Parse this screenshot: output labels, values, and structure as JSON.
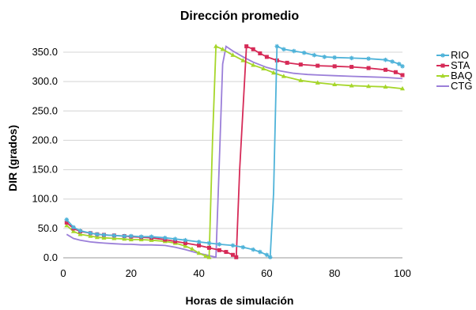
{
  "chart_data": {
    "type": "line",
    "title": "Dirección promedio",
    "xlabel": "Horas de simulación",
    "ylabel": "DIR (grados)",
    "xlim": [
      0,
      100
    ],
    "ylim": [
      0,
      350
    ],
    "xticks": [
      "0",
      "20",
      "40",
      "60",
      "80",
      "100"
    ],
    "yticks": [
      "0.0",
      "50.0",
      "100.0",
      "150.0",
      "200.0",
      "250.0",
      "300.0",
      "350.0"
    ],
    "grid": true,
    "legend_position": "right",
    "series": [
      {
        "name": "RIO",
        "color": "#4fb3d9",
        "marker": "star",
        "points": [
          [
            1,
            65
          ],
          [
            3,
            52
          ],
          [
            5,
            46
          ],
          [
            8,
            42
          ],
          [
            10,
            40
          ],
          [
            12,
            39
          ],
          [
            15,
            38
          ],
          [
            18,
            37
          ],
          [
            20,
            37
          ],
          [
            23,
            36
          ],
          [
            26,
            36
          ],
          [
            30,
            34
          ],
          [
            33,
            32
          ],
          [
            36,
            30
          ],
          [
            40,
            27
          ],
          [
            43,
            25
          ],
          [
            46,
            23
          ],
          [
            50,
            21
          ],
          [
            53,
            18
          ],
          [
            56,
            14
          ],
          [
            58,
            10
          ],
          [
            60,
            5
          ],
          [
            61,
            1
          ],
          [
            62,
            110
          ],
          [
            63,
            360
          ],
          [
            65,
            355
          ],
          [
            68,
            352
          ],
          [
            71,
            349
          ],
          [
            74,
            345
          ],
          [
            77,
            342
          ],
          [
            80,
            341
          ],
          [
            85,
            340
          ],
          [
            90,
            339
          ],
          [
            95,
            337
          ],
          [
            97,
            334
          ],
          [
            99,
            330
          ],
          [
            100,
            326
          ]
        ]
      },
      {
        "name": "STA",
        "color": "#d62a57",
        "marker": "square",
        "points": [
          [
            1,
            60
          ],
          [
            3,
            50
          ],
          [
            5,
            45
          ],
          [
            8,
            42
          ],
          [
            10,
            40
          ],
          [
            12,
            39
          ],
          [
            15,
            38
          ],
          [
            18,
            37
          ],
          [
            20,
            36
          ],
          [
            23,
            35
          ],
          [
            26,
            34
          ],
          [
            30,
            31
          ],
          [
            33,
            28
          ],
          [
            36,
            25
          ],
          [
            40,
            21
          ],
          [
            43,
            17
          ],
          [
            46,
            13
          ],
          [
            48,
            10
          ],
          [
            50,
            5
          ],
          [
            51,
            1
          ],
          [
            52,
            150
          ],
          [
            54,
            360
          ],
          [
            56,
            355
          ],
          [
            58,
            348
          ],
          [
            60,
            342
          ],
          [
            63,
            336
          ],
          [
            66,
            332
          ],
          [
            70,
            329
          ],
          [
            75,
            327
          ],
          [
            80,
            326
          ],
          [
            85,
            325
          ],
          [
            90,
            323
          ],
          [
            95,
            320
          ],
          [
            98,
            316
          ],
          [
            100,
            311
          ]
        ]
      },
      {
        "name": "BAQ",
        "color": "#a6d62a",
        "marker": "triangle",
        "points": [
          [
            1,
            55
          ],
          [
            3,
            45
          ],
          [
            5,
            40
          ],
          [
            8,
            37
          ],
          [
            10,
            35
          ],
          [
            12,
            34
          ],
          [
            15,
            33
          ],
          [
            18,
            32
          ],
          [
            20,
            31
          ],
          [
            23,
            31
          ],
          [
            26,
            30
          ],
          [
            30,
            28
          ],
          [
            33,
            25
          ],
          [
            36,
            20
          ],
          [
            38,
            15
          ],
          [
            40,
            8
          ],
          [
            42,
            3
          ],
          [
            43,
            1
          ],
          [
            44,
            200
          ],
          [
            45,
            360
          ],
          [
            47,
            355
          ],
          [
            50,
            345
          ],
          [
            53,
            336
          ],
          [
            56,
            328
          ],
          [
            59,
            322
          ],
          [
            62,
            315
          ],
          [
            65,
            309
          ],
          [
            70,
            302
          ],
          [
            75,
            298
          ],
          [
            80,
            295
          ],
          [
            85,
            293
          ],
          [
            90,
            292
          ],
          [
            95,
            291
          ],
          [
            100,
            288
          ]
        ]
      },
      {
        "name": "CTG",
        "color": "#9b7fd9",
        "marker": "none",
        "points": [
          [
            1,
            40
          ],
          [
            3,
            33
          ],
          [
            5,
            30
          ],
          [
            8,
            27
          ],
          [
            10,
            26
          ],
          [
            12,
            25
          ],
          [
            15,
            24
          ],
          [
            18,
            23
          ],
          [
            20,
            23
          ],
          [
            23,
            22
          ],
          [
            26,
            22
          ],
          [
            30,
            21
          ],
          [
            33,
            18
          ],
          [
            36,
            14
          ],
          [
            39,
            9
          ],
          [
            42,
            5
          ],
          [
            45,
            1
          ],
          [
            46,
            160
          ],
          [
            47,
            330
          ],
          [
            48,
            360
          ],
          [
            50,
            352
          ],
          [
            53,
            342
          ],
          [
            56,
            333
          ],
          [
            60,
            324
          ],
          [
            64,
            318
          ],
          [
            68,
            314
          ],
          [
            72,
            312
          ],
          [
            76,
            311
          ],
          [
            80,
            310
          ],
          [
            85,
            309
          ],
          [
            90,
            308
          ],
          [
            95,
            307
          ],
          [
            100,
            305
          ]
        ]
      }
    ]
  }
}
